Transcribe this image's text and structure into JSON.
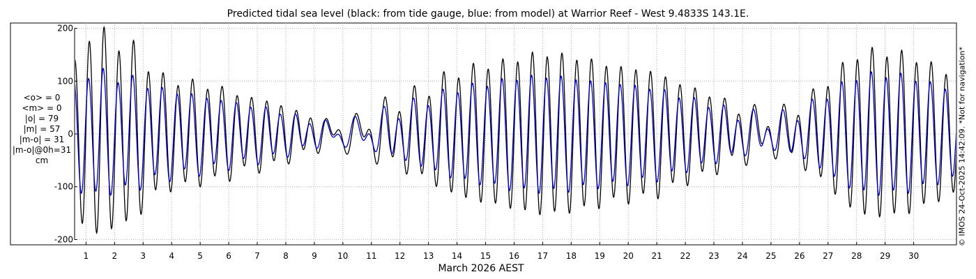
{
  "title": "Predicted tidal sea level (black: from tide gauge, blue: from model) at Warrior Reef - West 9.4833S 143.1E.",
  "stats": [
    "<o> = 0",
    "<m> = 0",
    "|o| = 79",
    "|m| = 57",
    "|m-o| = 31",
    "|m-o|@0h=31",
    "cm"
  ],
  "credit": "© IMOS 24-Oct-2025 14:42:09. *Not for navigation*",
  "colors": {
    "gauge": "#000000",
    "model": "#0000cc",
    "grid": "#b0b0b0",
    "axis": "#000000"
  },
  "chart_data": {
    "type": "line",
    "title": "Predicted tidal sea level (black: from tide gauge, blue: from model) at Warrior Reef - West 9.4833S 143.1E.",
    "xlabel": "March 2026 AEST",
    "ylabel": "",
    "unit": "cm",
    "xlim_days": [
      0.6,
      31.5
    ],
    "ylim": [
      -210,
      210
    ],
    "yticks": [
      -200,
      -100,
      0,
      100,
      200
    ],
    "xticks": [
      1,
      2,
      3,
      4,
      5,
      6,
      7,
      8,
      9,
      10,
      11,
      12,
      13,
      14,
      15,
      16,
      17,
      18,
      19,
      20,
      21,
      22,
      23,
      24,
      25,
      26,
      27,
      28,
      29,
      30
    ],
    "grid": true,
    "series": [
      {
        "name": "tide gauge",
        "style": "black",
        "semidiurnal_peak_amplitude": [
          [
            0.6,
            125
          ],
          [
            1,
            190
          ],
          [
            1.6,
            190
          ],
          [
            2,
            170
          ],
          [
            2.6,
            170
          ],
          [
            3,
            140
          ],
          [
            3.5,
            110
          ],
          [
            4,
            100
          ],
          [
            4.6,
            100
          ],
          [
            5,
            90
          ],
          [
            5.6,
            90
          ],
          [
            6,
            80
          ],
          [
            6.6,
            70
          ],
          [
            7,
            65
          ],
          [
            7.6,
            60
          ],
          [
            8,
            50
          ],
          [
            8.5,
            40
          ],
          [
            9,
            30
          ],
          [
            9.5,
            20
          ],
          [
            10,
            15
          ],
          [
            10.6,
            20
          ],
          [
            11,
            30
          ],
          [
            11.5,
            50
          ],
          [
            12,
            60
          ],
          [
            12.5,
            75
          ],
          [
            13,
            85
          ],
          [
            13.5,
            105
          ],
          [
            14,
            115
          ],
          [
            14.6,
            125
          ],
          [
            15,
            130
          ],
          [
            15.6,
            135
          ],
          [
            16,
            140
          ],
          [
            16.6,
            150
          ],
          [
            17,
            150
          ],
          [
            17.6,
            150
          ],
          [
            18,
            145
          ],
          [
            18.6,
            140
          ],
          [
            19,
            135
          ],
          [
            19.6,
            125
          ],
          [
            20,
            125
          ],
          [
            20.6,
            120
          ],
          [
            21,
            115
          ],
          [
            21.6,
            100
          ],
          [
            22,
            90
          ],
          [
            22.6,
            80
          ],
          [
            23,
            70
          ],
          [
            23.6,
            55
          ],
          [
            24,
            45
          ],
          [
            24.6,
            35
          ],
          [
            25,
            30
          ],
          [
            25.6,
            40
          ],
          [
            26,
            55
          ],
          [
            26.6,
            75
          ],
          [
            27,
            100
          ],
          [
            27.6,
            130
          ],
          [
            28,
            150
          ],
          [
            28.6,
            155
          ],
          [
            29,
            155
          ],
          [
            29.6,
            150
          ],
          [
            30,
            145
          ],
          [
            30.6,
            130
          ],
          [
            31,
            120
          ],
          [
            31.5,
            115
          ]
        ],
        "diurnal_amplitude": [
          [
            0.6,
            15
          ],
          [
            5,
            12
          ],
          [
            9,
            8
          ],
          [
            10,
            25
          ],
          [
            11,
            30
          ],
          [
            12,
            20
          ],
          [
            14,
            10
          ],
          [
            17,
            5
          ],
          [
            20,
            8
          ],
          [
            23,
            10
          ],
          [
            24.5,
            25
          ],
          [
            26,
            20
          ],
          [
            27,
            10
          ],
          [
            31.5,
            8
          ]
        ]
      },
      {
        "name": "model",
        "style": "blue",
        "semidiurnal_peak_amplitude": [
          [
            0.6,
            95
          ],
          [
            1,
            115
          ],
          [
            1.6,
            115
          ],
          [
            2,
            105
          ],
          [
            2.6,
            105
          ],
          [
            3,
            95
          ],
          [
            3.5,
            85
          ],
          [
            4,
            80
          ],
          [
            4.6,
            75
          ],
          [
            5,
            70
          ],
          [
            5.6,
            65
          ],
          [
            6,
            60
          ],
          [
            6.6,
            55
          ],
          [
            7,
            50
          ],
          [
            7.6,
            45
          ],
          [
            8,
            38
          ],
          [
            8.5,
            30
          ],
          [
            9,
            22
          ],
          [
            9.5,
            15
          ],
          [
            10,
            12
          ],
          [
            10.6,
            15
          ],
          [
            11,
            22
          ],
          [
            11.5,
            35
          ],
          [
            12,
            45
          ],
          [
            12.5,
            55
          ],
          [
            13,
            65
          ],
          [
            13.5,
            75
          ],
          [
            14,
            85
          ],
          [
            14.6,
            90
          ],
          [
            15,
            95
          ],
          [
            15.6,
            100
          ],
          [
            16,
            105
          ],
          [
            16.6,
            108
          ],
          [
            17,
            108
          ],
          [
            17.6,
            108
          ],
          [
            18,
            105
          ],
          [
            18.6,
            100
          ],
          [
            19,
            98
          ],
          [
            19.6,
            95
          ],
          [
            20,
            92
          ],
          [
            20.6,
            88
          ],
          [
            21,
            85
          ],
          [
            21.6,
            75
          ],
          [
            22,
            68
          ],
          [
            22.6,
            60
          ],
          [
            23,
            52
          ],
          [
            23.6,
            42
          ],
          [
            24,
            35
          ],
          [
            24.6,
            28
          ],
          [
            25,
            25
          ],
          [
            25.6,
            32
          ],
          [
            26,
            42
          ],
          [
            26.6,
            58
          ],
          [
            27,
            75
          ],
          [
            27.6,
            95
          ],
          [
            28,
            108
          ],
          [
            28.6,
            112
          ],
          [
            29,
            112
          ],
          [
            29.6,
            110
          ],
          [
            30,
            105
          ],
          [
            30.6,
            95
          ],
          [
            31,
            88
          ],
          [
            31.5,
            85
          ]
        ],
        "diurnal_amplitude": [
          [
            0.6,
            12
          ],
          [
            5,
            10
          ],
          [
            9,
            8
          ],
          [
            10,
            20
          ],
          [
            11,
            22
          ],
          [
            12,
            15
          ],
          [
            14,
            8
          ],
          [
            17,
            5
          ],
          [
            20,
            6
          ],
          [
            23,
            8
          ],
          [
            24.5,
            18
          ],
          [
            26,
            15
          ],
          [
            27,
            8
          ],
          [
            31.5,
            6
          ]
        ]
      }
    ]
  }
}
